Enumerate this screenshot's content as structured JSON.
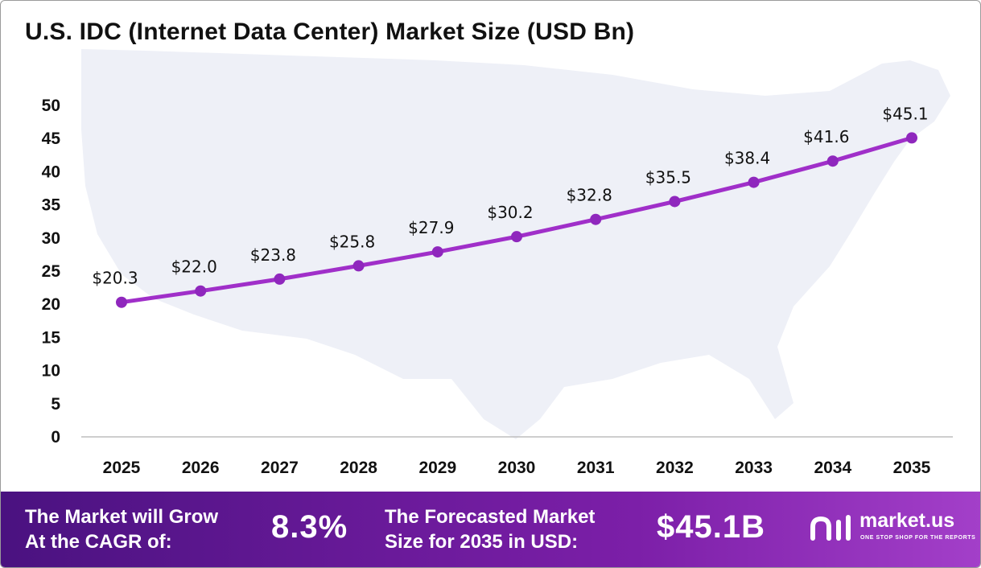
{
  "colors": {
    "line": "#a02fc9",
    "point": "#8f27bd",
    "map": "#eef0f7",
    "axis": "#bdbdbd"
  },
  "chart_data": {
    "type": "line",
    "title": "U.S. IDC (Internet Data Center) Market Size (USD Bn)",
    "xlabel": "",
    "ylabel": "",
    "x": [
      "2025",
      "2026",
      "2027",
      "2028",
      "2029",
      "2030",
      "2031",
      "2032",
      "2033",
      "2034",
      "2035"
    ],
    "y_ticks": [
      "0",
      "5",
      "10",
      "15",
      "20",
      "25",
      "30",
      "35",
      "40",
      "45",
      "50"
    ],
    "ylim": [
      0,
      50
    ],
    "grid": false,
    "legend": "none",
    "series": [
      {
        "values": [
          20.3,
          22.0,
          23.8,
          25.8,
          27.9,
          30.2,
          32.8,
          35.5,
          38.4,
          41.6,
          45.1
        ],
        "labels": [
          "$20.3",
          "$22.0",
          "$23.8",
          "$25.8",
          "$27.9",
          "$30.2",
          "$32.8",
          "$35.5",
          "$38.4",
          "$41.6",
          "$45.1"
        ]
      }
    ]
  },
  "footer": {
    "cagr_line1": "The Market will Grow",
    "cagr_line2": "At the CAGR of:",
    "cagr_value": "8.3%",
    "forecast_line1": "The Forecasted Market",
    "forecast_line2": "Size for 2035 in USD:",
    "forecast_value": "$45.1B",
    "brand_name": "market.us",
    "brand_tagline": "ONE STOP SHOP FOR THE REPORTS"
  }
}
